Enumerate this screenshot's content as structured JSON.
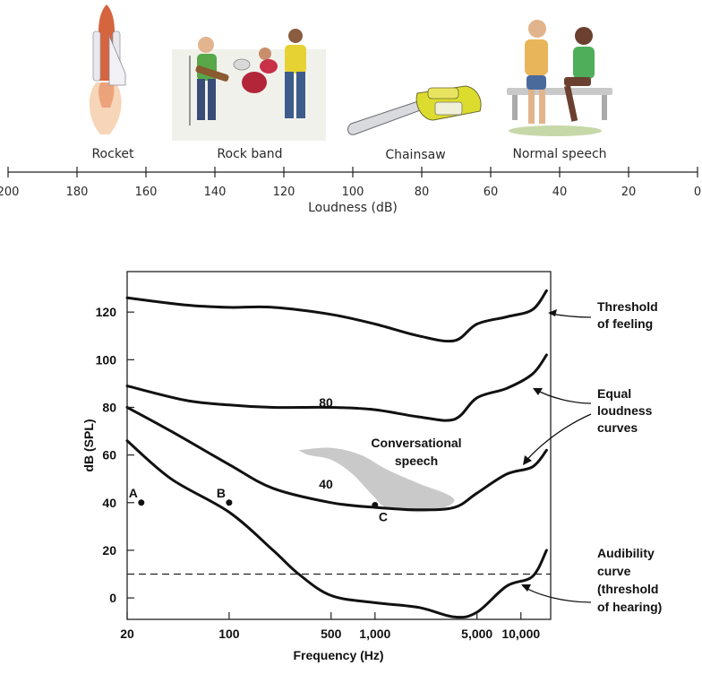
{
  "loudness_scale": {
    "title": "Loudness (dB)",
    "ticks": [
      "200",
      "180",
      "160",
      "140",
      "120",
      "100",
      "80",
      "60",
      "40",
      "20",
      "0"
    ],
    "tick_values": [
      200,
      180,
      160,
      140,
      120,
      100,
      80,
      60,
      40,
      20,
      0
    ],
    "sounds": [
      {
        "label": "Rocket",
        "icon": "rocket-icon"
      },
      {
        "label": "Rock band",
        "icon": "rock-band-icon"
      },
      {
        "label": "Chainsaw",
        "icon": "chainsaw-icon"
      },
      {
        "label": "Normal speech",
        "icon": "normal-speech-icon"
      }
    ]
  },
  "chart_data": {
    "type": "line",
    "xlabel": "Frequency (Hz)",
    "ylabel": "dB (SPL)",
    "xscale": "log",
    "xlim": [
      20,
      16000
    ],
    "ylim": [
      -9,
      137
    ],
    "x_ticks": [
      20,
      100,
      500,
      1000,
      5000,
      10000
    ],
    "x_tick_labels": [
      "20",
      "100",
      "500",
      "1,000",
      "5,000",
      "10,000"
    ],
    "y_ticks": [
      0,
      20,
      40,
      60,
      80,
      100,
      120
    ],
    "y_tick_labels": [
      "0",
      "20",
      "40",
      "60",
      "80",
      "100",
      "120"
    ],
    "series": [
      {
        "name": "Threshold of feeling",
        "x": [
          20,
          50,
          100,
          200,
          500,
          1000,
          2000,
          3500,
          5000,
          8000,
          12000,
          15000
        ],
        "y": [
          126,
          123,
          122,
          122,
          119,
          115,
          110,
          108,
          115,
          118,
          121,
          129
        ]
      },
      {
        "name": "80",
        "x": [
          20,
          50,
          100,
          200,
          500,
          1000,
          2000,
          3500,
          5000,
          8000,
          12000,
          15000
        ],
        "y": [
          89,
          83,
          81,
          80,
          80,
          79,
          76,
          75,
          84,
          88,
          94,
          102
        ]
      },
      {
        "name": "40",
        "x": [
          20,
          40,
          100,
          200,
          500,
          1000,
          2000,
          3500,
          5000,
          8000,
          12000,
          15000
        ],
        "y": [
          80,
          70,
          56,
          46,
          40,
          38,
          37,
          38,
          44,
          52,
          55,
          62
        ]
      },
      {
        "name": "Audibility curve (threshold of hearing)",
        "x": [
          20,
          40,
          100,
          200,
          300,
          500,
          1000,
          2000,
          3500,
          5000,
          8000,
          12000,
          15000
        ],
        "y": [
          66,
          50,
          36,
          20,
          10,
          1,
          -2,
          -4,
          -8,
          -6,
          5,
          9,
          20
        ]
      }
    ],
    "reference_line": {
      "y": 10,
      "style": "dashed"
    },
    "points": [
      {
        "label": "A",
        "x": 25,
        "y": 40
      },
      {
        "label": "B",
        "x": 100,
        "y": 40
      },
      {
        "label": "C",
        "x": 1000,
        "y": 39
      }
    ],
    "region": {
      "label_lines": [
        "Conversational",
        "speech"
      ],
      "x": [
        300,
        500,
        800,
        1200,
        2000,
        3000,
        3500,
        3000,
        2000,
        1200,
        1000,
        700,
        500,
        350,
        300
      ],
      "y": [
        62,
        63,
        60,
        54,
        48,
        44,
        41,
        38,
        36,
        38,
        42,
        52,
        58,
        60,
        62
      ],
      "color": "#c9c9c9"
    },
    "inline_labels": [
      "80",
      "40"
    ],
    "annotations": [
      {
        "lines": [
          "Threshold",
          "of feeling"
        ]
      },
      {
        "lines": [
          "Equal",
          "loudness",
          "curves"
        ]
      },
      {
        "lines": [
          "Audibility",
          "curve",
          "(threshold",
          "of hearing)"
        ]
      }
    ]
  }
}
